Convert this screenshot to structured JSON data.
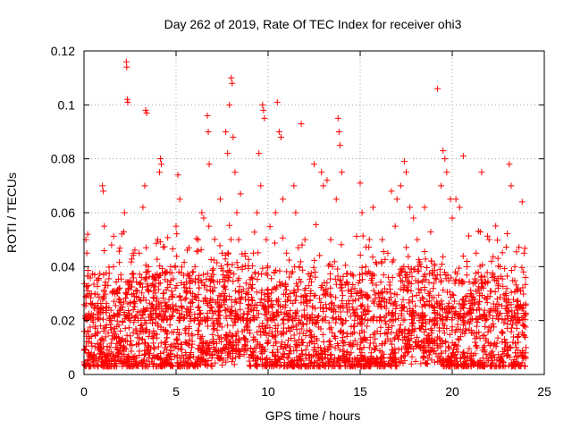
{
  "chart_data": {
    "type": "scatter",
    "title": "Day 262 of 2019, Rate Of TEC Index for receiver ohi3",
    "xlabel": "GPS time / hours",
    "ylabel": "ROTI / TECUs",
    "xlim": [
      0,
      25
    ],
    "ylim": [
      0,
      0.12
    ],
    "xticks": [
      0,
      5,
      10,
      15,
      20,
      25
    ],
    "yticks": [
      0,
      0.02,
      0.04,
      0.06,
      0.08,
      0.1,
      0.12
    ],
    "xtick_labels": [
      "0",
      "5",
      "10",
      "15",
      "20",
      "25"
    ],
    "ytick_labels": [
      "0",
      "0.02",
      "0.04",
      "0.06",
      "0.08",
      "0.1",
      "0.12"
    ],
    "grid": true,
    "marker": "+",
    "marker_color": "#ff0000",
    "series": [
      {
        "points": [
          [
            0.0,
            0.009
          ],
          [
            0.1,
            0.05
          ],
          [
            0.15,
            0.045
          ],
          [
            0.2,
            0.052
          ],
          [
            0.25,
            0.012
          ],
          [
            0.3,
            0.03
          ],
          [
            0.4,
            0.008
          ],
          [
            0.5,
            0.022
          ],
          [
            0.6,
            0.015
          ],
          [
            0.7,
            0.035
          ],
          [
            0.8,
            0.01
          ],
          [
            0.9,
            0.018
          ],
          [
            1.0,
            0.07
          ],
          [
            1.05,
            0.068
          ],
          [
            1.1,
            0.055
          ],
          [
            1.2,
            0.025
          ],
          [
            1.3,
            0.033
          ],
          [
            1.4,
            0.01
          ],
          [
            1.5,
            0.02
          ],
          [
            1.6,
            0.04
          ],
          [
            1.7,
            0.015
          ],
          [
            1.8,
            0.03
          ],
          [
            1.9,
            0.012
          ],
          [
            2.0,
            0.037
          ],
          [
            2.1,
            0.025
          ],
          [
            2.2,
            0.06
          ],
          [
            2.3,
            0.116
          ],
          [
            2.32,
            0.114
          ],
          [
            2.35,
            0.102
          ],
          [
            2.38,
            0.101
          ],
          [
            2.5,
            0.02
          ],
          [
            2.7,
            0.03
          ],
          [
            2.9,
            0.015
          ],
          [
            3.0,
            0.045
          ],
          [
            3.2,
            0.062
          ],
          [
            3.3,
            0.07
          ],
          [
            3.35,
            0.098
          ],
          [
            3.4,
            0.097
          ],
          [
            3.5,
            0.04
          ],
          [
            3.6,
            0.02
          ],
          [
            3.8,
            0.01
          ],
          [
            3.9,
            0.035
          ],
          [
            4.0,
            0.05
          ],
          [
            4.1,
            0.075
          ],
          [
            4.15,
            0.08
          ],
          [
            4.2,
            0.078
          ],
          [
            4.3,
            0.03
          ],
          [
            4.5,
            0.015
          ],
          [
            4.7,
            0.04
          ],
          [
            4.9,
            0.01
          ],
          [
            5.0,
            0.055
          ],
          [
            5.1,
            0.074
          ],
          [
            5.2,
            0.065
          ],
          [
            5.3,
            0.025
          ],
          [
            5.5,
            0.012
          ],
          [
            5.7,
            0.047
          ],
          [
            5.9,
            0.03
          ],
          [
            6.0,
            0.02
          ],
          [
            6.2,
            0.05
          ],
          [
            6.4,
            0.06
          ],
          [
            6.5,
            0.058
          ],
          [
            6.7,
            0.096
          ],
          [
            6.75,
            0.09
          ],
          [
            6.8,
            0.078
          ],
          [
            7.0,
            0.035
          ],
          [
            7.2,
            0.02
          ],
          [
            7.4,
            0.065
          ],
          [
            7.5,
            0.045
          ],
          [
            7.6,
            0.03
          ],
          [
            7.7,
            0.09
          ],
          [
            7.8,
            0.082
          ],
          [
            7.9,
            0.1
          ],
          [
            8.0,
            0.11
          ],
          [
            8.05,
            0.108
          ],
          [
            8.1,
            0.088
          ],
          [
            8.2,
            0.075
          ],
          [
            8.3,
            0.06
          ],
          [
            8.4,
            0.05
          ],
          [
            8.5,
            0.067
          ],
          [
            8.6,
            0.04
          ],
          [
            8.8,
            0.03
          ],
          [
            9.0,
            0.02
          ],
          [
            9.2,
            0.045
          ],
          [
            9.4,
            0.06
          ],
          [
            9.5,
            0.082
          ],
          [
            9.6,
            0.07
          ],
          [
            9.7,
            0.1
          ],
          [
            9.75,
            0.098
          ],
          [
            9.8,
            0.095
          ],
          [
            9.9,
            0.05
          ],
          [
            10.0,
            0.03
          ],
          [
            10.2,
            0.02
          ],
          [
            10.4,
            0.06
          ],
          [
            10.5,
            0.101
          ],
          [
            10.6,
            0.09
          ],
          [
            10.7,
            0.088
          ],
          [
            10.8,
            0.065
          ],
          [
            11.0,
            0.045
          ],
          [
            11.2,
            0.03
          ],
          [
            11.4,
            0.07
          ],
          [
            11.5,
            0.06
          ],
          [
            11.7,
            0.04
          ],
          [
            11.8,
            0.093
          ],
          [
            12.0,
            0.05
          ],
          [
            12.3,
            0.03
          ],
          [
            12.5,
            0.078
          ],
          [
            12.7,
            0.02
          ],
          [
            12.9,
            0.075
          ],
          [
            13.0,
            0.07
          ],
          [
            13.2,
            0.072
          ],
          [
            13.4,
            0.05
          ],
          [
            13.5,
            0.04
          ],
          [
            13.7,
            0.065
          ],
          [
            13.8,
            0.095
          ],
          [
            13.85,
            0.09
          ],
          [
            13.9,
            0.085
          ],
          [
            14.0,
            0.075
          ],
          [
            14.2,
            0.02
          ],
          [
            14.5,
            0.015
          ],
          [
            14.8,
            0.03
          ],
          [
            15.0,
            0.071
          ],
          [
            15.1,
            0.06
          ],
          [
            15.3,
            0.04
          ],
          [
            15.5,
            0.05
          ],
          [
            15.7,
            0.062
          ],
          [
            16.0,
            0.03
          ],
          [
            16.2,
            0.05
          ],
          [
            16.5,
            0.045
          ],
          [
            16.7,
            0.068
          ],
          [
            16.9,
            0.055
          ],
          [
            17.0,
            0.065
          ],
          [
            17.2,
            0.07
          ],
          [
            17.4,
            0.079
          ],
          [
            17.5,
            0.075
          ],
          [
            17.7,
            0.062
          ],
          [
            17.9,
            0.058
          ],
          [
            18.1,
            0.05
          ],
          [
            18.3,
            0.04
          ],
          [
            18.5,
            0.062
          ],
          [
            18.7,
            0.03
          ],
          [
            18.9,
            0.02
          ],
          [
            19.2,
            0.106
          ],
          [
            19.4,
            0.07
          ],
          [
            19.5,
            0.083
          ],
          [
            19.6,
            0.08
          ],
          [
            19.7,
            0.075
          ],
          [
            19.9,
            0.065
          ],
          [
            20.0,
            0.058
          ],
          [
            20.2,
            0.065
          ],
          [
            20.4,
            0.062
          ],
          [
            20.6,
            0.081
          ],
          [
            20.8,
            0.04
          ],
          [
            21.0,
            0.03
          ],
          [
            21.3,
            0.045
          ],
          [
            21.6,
            0.075
          ],
          [
            21.8,
            0.02
          ],
          [
            22.0,
            0.05
          ],
          [
            22.3,
            0.035
          ],
          [
            22.6,
            0.04
          ],
          [
            22.9,
            0.03
          ],
          [
            23.1,
            0.078
          ],
          [
            23.2,
            0.07
          ],
          [
            23.4,
            0.04
          ],
          [
            23.6,
            0.02
          ],
          [
            23.8,
            0.064
          ],
          [
            23.9,
            0.045
          ],
          [
            24.0,
            0.01
          ]
        ]
      }
    ],
    "dense_band": {
      "description_values": "bulk of observations between 0.003 and 0.025 across 0-24 h",
      "y_min": 0.003,
      "y_max": 0.025
    }
  }
}
